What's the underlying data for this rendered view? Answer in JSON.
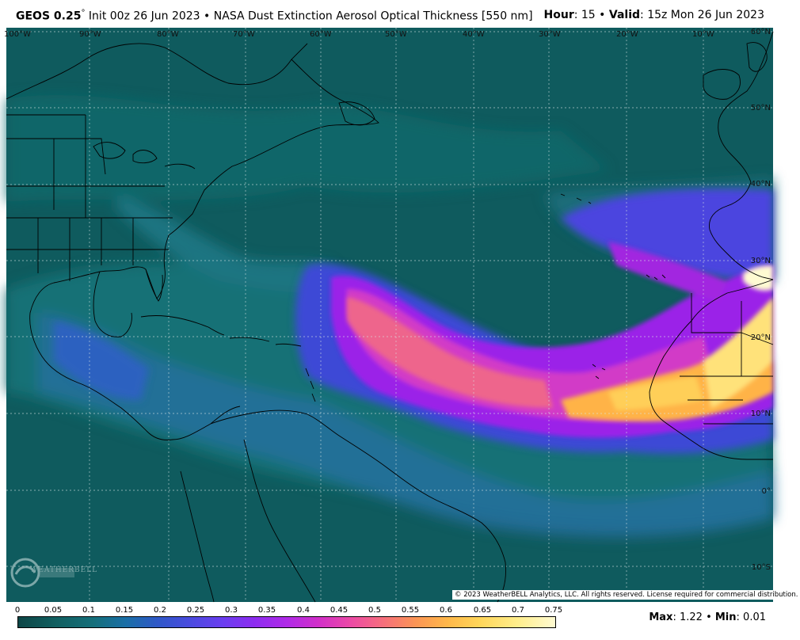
{
  "header": {
    "model": "GEOS 0.25",
    "degree": "°",
    "init": "Init 00z 26 Jun 2023",
    "bullet": "•",
    "product": "NASA Dust Extinction Aerosol Optical Thickness [550 nm]",
    "hour_label": "Hour",
    "hour_value": ": 15",
    "valid_label": "Valid",
    "valid_value": ": 15z Mon 26 Jun 2023"
  },
  "map": {
    "background_color": "#0f5b5e",
    "longitude_labels": [
      "100°W",
      "90°W",
      "80°W",
      "70°W",
      "60°W",
      "50°W",
      "40°W",
      "30°W",
      "20°W",
      "10°W"
    ],
    "latitude_labels": [
      "60°N",
      "50°N",
      "40°N",
      "30°N",
      "20°N",
      "10°N",
      "0°",
      "10°S"
    ],
    "copyright": "© 2023 WeatherBELL Analytics, LLC. All rights reserved. License required for commercial distribution.",
    "logo_icon": "weatherbell-logo-icon",
    "logo_text": "WEATHERBELL"
  },
  "colorbar": {
    "ticks": [
      "0",
      "0.05",
      "0.1",
      "0.15",
      "0.2",
      "0.25",
      "0.3",
      "0.35",
      "0.4",
      "0.45",
      "0.5",
      "0.55",
      "0.6",
      "0.65",
      "0.7",
      "0.75"
    ],
    "min_value": 0,
    "max_value": 0.75
  },
  "stats": {
    "max_label": "Max",
    "max_value": ": 1.22",
    "bullet": "•",
    "min_label": "Min",
    "min_value": ": 0.01"
  }
}
